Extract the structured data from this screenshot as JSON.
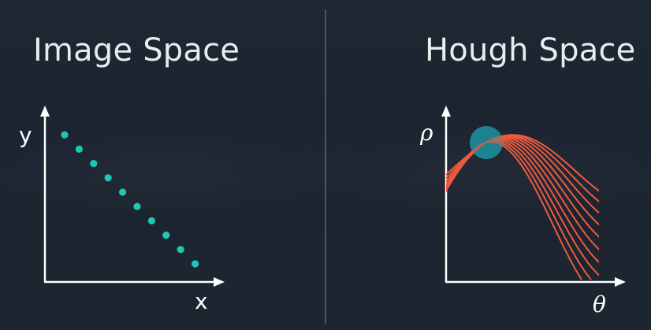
{
  "left_panel": {
    "title": "Image Space",
    "x_axis_label": "x",
    "y_axis_label": "y",
    "point_color": "#1fc7b3",
    "points": [
      [
        1,
        9
      ],
      [
        2,
        8
      ],
      [
        3,
        7
      ],
      [
        4,
        6
      ],
      [
        5,
        5
      ],
      [
        6,
        4
      ],
      [
        7,
        3
      ],
      [
        8,
        2
      ],
      [
        9,
        1
      ],
      [
        10,
        0
      ]
    ]
  },
  "right_panel": {
    "title": "Hough Space",
    "x_axis_label": "θ",
    "y_axis_label": "ρ",
    "curve_color": "#ef5a3f",
    "intersection_color": "#1d8d9c",
    "curve_count": 10
  },
  "colors": {
    "background": "#1d252f",
    "text": "#e8ecef",
    "axes": "#ffffff",
    "divider": "#4a5561"
  }
}
